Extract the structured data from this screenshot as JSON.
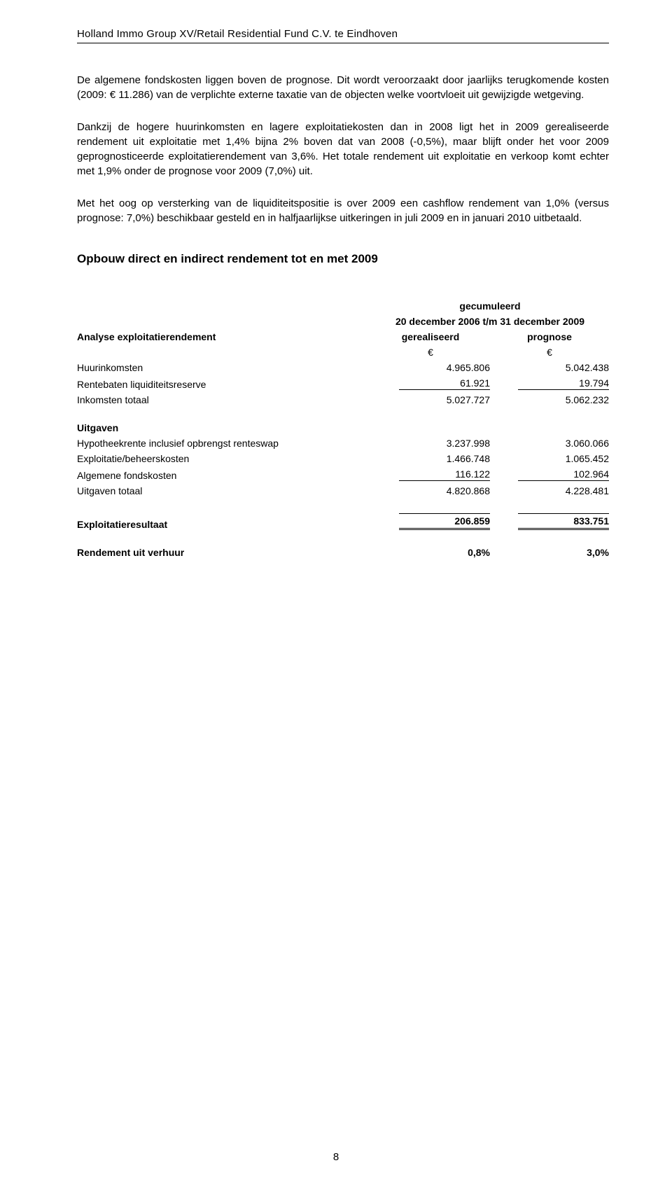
{
  "header": {
    "title": "Holland Immo Group XV/Retail Residential Fund C.V. te Eindhoven"
  },
  "paragraphs": {
    "p1": "De algemene fondskosten liggen boven de prognose. Dit wordt veroorzaakt door jaarlijks terugkomende kosten (2009: € 11.286) van de verplichte externe taxatie van de objecten welke voortvloeit uit gewijzigde wetgeving.",
    "p2": "Dankzij de hogere huurinkomsten en lagere exploitatiekosten dan in 2008 ligt het in 2009 gerealiseerde rendement uit exploitatie met 1,4% bijna 2% boven dat van 2008 (-0,5%), maar blijft onder het voor 2009 geprognosticeerde exploitatierendement van 3,6%. Het totale rendement uit exploitatie en verkoop komt echter met 1,9% onder de prognose voor 2009 (7,0%) uit.",
    "p3": "Met het oog op versterking van de liquiditeitspositie is over 2009 een cashflow rendement van 1,0% (versus prognose: 7,0%) beschikbaar gesteld en in halfjaarlijkse uitkeringen in juli 2009 en in januari 2010 uitbetaald."
  },
  "section_heading": "Opbouw direct en indirect rendement tot en met 2009",
  "table": {
    "head_cumul": "gecumuleerd",
    "head_period": "20 december 2006 t/m 31 december 2009",
    "analyse_label": "Analyse exploitatierendement",
    "col1": "gerealiseerd",
    "col2": "prognose",
    "euro": "€",
    "rows": {
      "huurinkomsten": {
        "label": "Huurinkomsten",
        "v1": "4.965.806",
        "v2": "5.042.438"
      },
      "rentebaten": {
        "label": "Rentebaten liquiditeitsreserve",
        "v1": "61.921",
        "v2": "19.794"
      },
      "inkomsten_tot": {
        "label": "Inkomsten totaal",
        "v1": "5.027.727",
        "v2": "5.062.232"
      },
      "uitgaven_head": {
        "label": "Uitgaven"
      },
      "hypotheek": {
        "label": "Hypotheekrente inclusief opbrengst renteswap",
        "v1": "3.237.998",
        "v2": "3.060.066"
      },
      "exploitatie": {
        "label": "Exploitatie/beheerskosten",
        "v1": "1.466.748",
        "v2": "1.065.452"
      },
      "algemene": {
        "label": "Algemene fondskosten",
        "v1": "116.122",
        "v2": "102.964"
      },
      "uitgaven_tot": {
        "label": "Uitgaven totaal",
        "v1": "4.820.868",
        "v2": "4.228.481"
      },
      "exploit_res": {
        "label": "Exploitatieresultaat",
        "v1": "206.859",
        "v2": "833.751"
      },
      "rendement": {
        "label": "Rendement uit verhuur",
        "v1": "0,8%",
        "v2": "3,0%"
      }
    }
  },
  "page_number": "8"
}
